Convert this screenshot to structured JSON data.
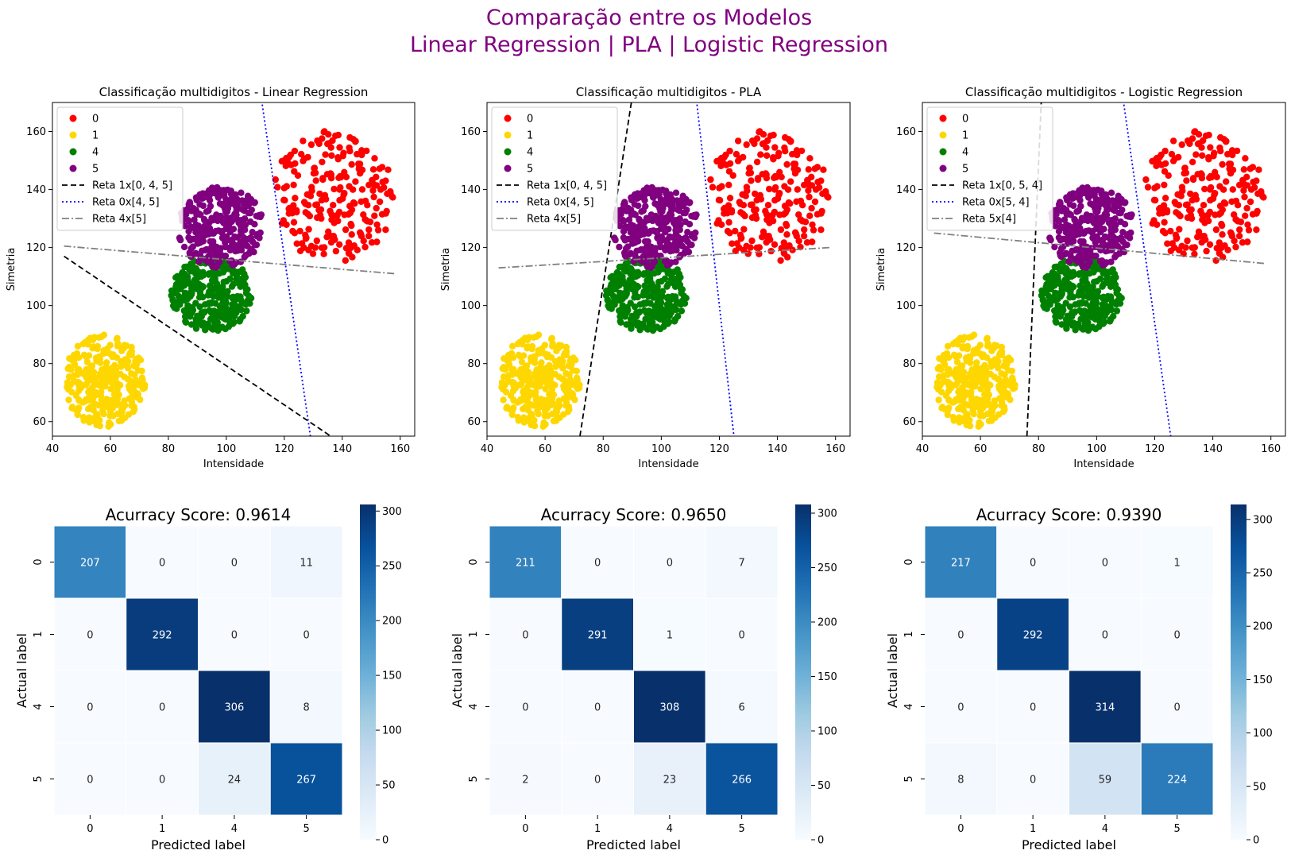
{
  "suptitle": [
    "Comparação entre os Modelos",
    "Linear Regression | PLA | Logistic Regression"
  ],
  "colors": {
    "title": "#800080",
    "class_0": "#ff0000",
    "class_1": "#ffd700",
    "class_4": "#008000",
    "class_5": "#800080",
    "line_a": "#000000",
    "line_b": "#0000ff",
    "line_c": "#808080"
  },
  "chart_data": [
    {
      "type": "scatter",
      "title": "Classificação multidigitos - Linear Regression",
      "xlabel": "Intensidade",
      "ylabel": "Simetria",
      "xlim": [
        40,
        165
      ],
      "ylim": [
        55,
        170
      ],
      "xticks": [
        "40",
        "60",
        "80",
        "100",
        "120",
        "140",
        "160"
      ],
      "yticks": [
        "60",
        "80",
        "100",
        "120",
        "140",
        "160"
      ],
      "clusters": [
        {
          "name": "0",
          "color": "#ff0000",
          "cx": 137,
          "cy": 138,
          "rx": 21,
          "ry": 23,
          "n": 230
        },
        {
          "name": "1",
          "color": "#ffd700",
          "cx": 58,
          "cy": 74,
          "rx": 14,
          "ry": 16,
          "n": 290
        },
        {
          "name": "4",
          "color": "#008000",
          "cx": 95,
          "cy": 104,
          "rx": 14,
          "ry": 13,
          "n": 300
        },
        {
          "name": "5",
          "color": "#800080",
          "cx": 98,
          "cy": 127,
          "rx": 15,
          "ry": 14,
          "n": 290
        }
      ],
      "legend": [
        {
          "kind": "marker",
          "label": "0",
          "color": "#ff0000"
        },
        {
          "kind": "marker",
          "label": "1",
          "color": "#ffd700"
        },
        {
          "kind": "marker",
          "label": "4",
          "color": "#008000"
        },
        {
          "kind": "marker",
          "label": "5",
          "color": "#800080"
        },
        {
          "kind": "dashed",
          "label": "Reta 1x[0, 4, 5]",
          "color": "#000000"
        },
        {
          "kind": "dotted",
          "label": "Reta 0x[4, 5]",
          "color": "#0000ff"
        },
        {
          "kind": "dashdot",
          "label": "Reta 4x[5]",
          "color": "#808080"
        }
      ],
      "lines": [
        {
          "style": "dashed",
          "color": "#000000",
          "points": [
            [
              44,
              117
            ],
            [
              136,
              55
            ]
          ]
        },
        {
          "style": "dotted",
          "color": "#0000ff",
          "points": [
            [
              112,
              172
            ],
            [
              129,
              55
            ]
          ]
        },
        {
          "style": "dashdot",
          "color": "#808080",
          "points": [
            [
              44,
              120.5
            ],
            [
              158,
              111
            ]
          ]
        }
      ]
    },
    {
      "type": "scatter",
      "title": "Classificação multidigitos - PLA",
      "xlabel": "Intensidade",
      "ylabel": "Simetria",
      "xlim": [
        40,
        165
      ],
      "ylim": [
        55,
        170
      ],
      "xticks": [
        "40",
        "60",
        "80",
        "100",
        "120",
        "140",
        "160"
      ],
      "yticks": [
        "60",
        "80",
        "100",
        "120",
        "140",
        "160"
      ],
      "clusters": [
        {
          "name": "0",
          "color": "#ff0000",
          "cx": 137,
          "cy": 138,
          "rx": 21,
          "ry": 23,
          "n": 230
        },
        {
          "name": "1",
          "color": "#ffd700",
          "cx": 58,
          "cy": 74,
          "rx": 14,
          "ry": 16,
          "n": 290
        },
        {
          "name": "4",
          "color": "#008000",
          "cx": 95,
          "cy": 104,
          "rx": 14,
          "ry": 13,
          "n": 300
        },
        {
          "name": "5",
          "color": "#800080",
          "cx": 98,
          "cy": 127,
          "rx": 15,
          "ry": 14,
          "n": 290
        }
      ],
      "legend": [
        {
          "kind": "marker",
          "label": "0",
          "color": "#ff0000"
        },
        {
          "kind": "marker",
          "label": "1",
          "color": "#ffd700"
        },
        {
          "kind": "marker",
          "label": "4",
          "color": "#008000"
        },
        {
          "kind": "marker",
          "label": "5",
          "color": "#800080"
        },
        {
          "kind": "dashed",
          "label": "Reta 1x[0, 4, 5]",
          "color": "#000000"
        },
        {
          "kind": "dotted",
          "label": "Reta 0x[4, 5]",
          "color": "#0000ff"
        },
        {
          "kind": "dashdot",
          "label": "Reta 4x[5]",
          "color": "#808080"
        }
      ],
      "lines": [
        {
          "style": "dashed",
          "color": "#000000",
          "points": [
            [
              72,
              55
            ],
            [
              90,
              172
            ]
          ]
        },
        {
          "style": "dotted",
          "color": "#0000ff",
          "points": [
            [
              112,
              172
            ],
            [
              125,
              55
            ]
          ]
        },
        {
          "style": "dashdot",
          "color": "#808080",
          "points": [
            [
              44,
              113
            ],
            [
              158,
              120
            ]
          ]
        }
      ]
    },
    {
      "type": "scatter",
      "title": "Classificação multidigitos - Logistic Regression",
      "xlabel": "Intensidade",
      "ylabel": "Simetria",
      "xlim": [
        40,
        165
      ],
      "ylim": [
        55,
        170
      ],
      "xticks": [
        "40",
        "60",
        "80",
        "100",
        "120",
        "140",
        "160"
      ],
      "yticks": [
        "60",
        "80",
        "100",
        "120",
        "140",
        "160"
      ],
      "clusters": [
        {
          "name": "0",
          "color": "#ff0000",
          "cx": 137,
          "cy": 138,
          "rx": 21,
          "ry": 23,
          "n": 230
        },
        {
          "name": "1",
          "color": "#ffd700",
          "cx": 58,
          "cy": 74,
          "rx": 14,
          "ry": 16,
          "n": 290
        },
        {
          "name": "4",
          "color": "#008000",
          "cx": 95,
          "cy": 104,
          "rx": 14,
          "ry": 13,
          "n": 300
        },
        {
          "name": "5",
          "color": "#800080",
          "cx": 98,
          "cy": 127,
          "rx": 15,
          "ry": 14,
          "n": 290
        }
      ],
      "legend": [
        {
          "kind": "marker",
          "label": "0",
          "color": "#ff0000"
        },
        {
          "kind": "marker",
          "label": "1",
          "color": "#ffd700"
        },
        {
          "kind": "marker",
          "label": "4",
          "color": "#008000"
        },
        {
          "kind": "marker",
          "label": "5",
          "color": "#800080"
        },
        {
          "kind": "dashed",
          "label": "Reta 1x[0, 5, 4]",
          "color": "#000000"
        },
        {
          "kind": "dotted",
          "label": "Reta 0x[5, 4]",
          "color": "#0000ff"
        },
        {
          "kind": "dashdot",
          "label": "Reta 5x[4]",
          "color": "#808080"
        }
      ],
      "lines": [
        {
          "style": "dashed",
          "color": "#000000",
          "points": [
            [
              76,
              55
            ],
            [
              81,
              172
            ]
          ]
        },
        {
          "style": "dotted",
          "color": "#0000ff",
          "points": [
            [
              109,
              172
            ],
            [
              125.5,
              55
            ]
          ]
        },
        {
          "style": "dashdot",
          "color": "#808080",
          "points": [
            [
              44,
              125
            ],
            [
              158,
              114.5
            ]
          ]
        }
      ]
    },
    {
      "type": "heatmap",
      "title": "Acurracy Score: 0.9614",
      "xlabel": "Predicted label",
      "ylabel": "Actual label",
      "labels": [
        "0",
        "1",
        "4",
        "5"
      ],
      "matrix": [
        [
          207,
          0,
          0,
          11
        ],
        [
          0,
          292,
          0,
          0
        ],
        [
          0,
          0,
          306,
          8
        ],
        [
          0,
          0,
          24,
          267
        ]
      ],
      "colorbar_ticks": [
        "0",
        "50",
        "100",
        "150",
        "200",
        "250",
        "300"
      ]
    },
    {
      "type": "heatmap",
      "title": "Acurracy Score: 0.9650",
      "xlabel": "Predicted label",
      "ylabel": "Actual label",
      "labels": [
        "0",
        "1",
        "4",
        "5"
      ],
      "matrix": [
        [
          211,
          0,
          0,
          7
        ],
        [
          0,
          291,
          1,
          0
        ],
        [
          0,
          0,
          308,
          6
        ],
        [
          2,
          0,
          23,
          266
        ]
      ],
      "colorbar_ticks": [
        "0",
        "50",
        "100",
        "150",
        "200",
        "250",
        "300"
      ]
    },
    {
      "type": "heatmap",
      "title": "Acurracy Score: 0.9390",
      "xlabel": "Predicted label",
      "ylabel": "Actual label",
      "labels": [
        "0",
        "1",
        "4",
        "5"
      ],
      "matrix": [
        [
          217,
          0,
          0,
          1
        ],
        [
          0,
          292,
          0,
          0
        ],
        [
          0,
          0,
          314,
          0
        ],
        [
          8,
          0,
          59,
          224
        ]
      ],
      "colorbar_ticks": [
        "0",
        "50",
        "100",
        "150",
        "200",
        "250",
        "300"
      ]
    }
  ]
}
